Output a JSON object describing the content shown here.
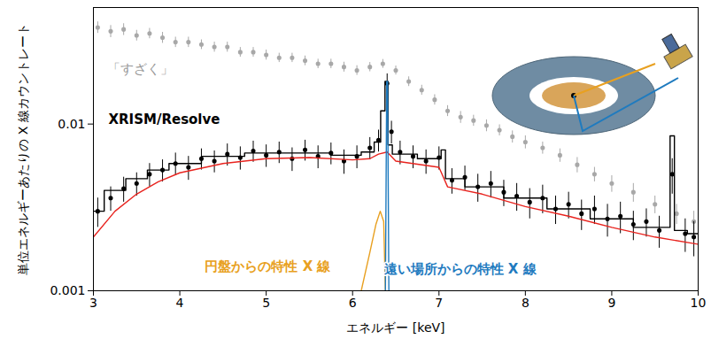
{
  "chart_data": {
    "type": "line",
    "x_label": "エネルギー [keV]",
    "y_label": "単位エネルギーあたりの X 線カウントレート",
    "xlim": [
      3,
      10
    ],
    "xticks": [
      3,
      4,
      5,
      6,
      7,
      8,
      9,
      10
    ],
    "ylim": [
      0.001,
      0.05
    ],
    "yticks": [
      0.001,
      0.01
    ],
    "log": "y",
    "grid": false,
    "series": [
      {
        "name": "「すざく」",
        "type": "scatter",
        "marker": "circle",
        "color": "#a8a8a8",
        "x": [
          3.05,
          3.2,
          3.35,
          3.5,
          3.65,
          3.8,
          3.95,
          4.1,
          4.25,
          4.4,
          4.55,
          4.7,
          4.85,
          5.0,
          5.15,
          5.3,
          5.45,
          5.6,
          5.75,
          5.9,
          6.05,
          6.2,
          6.35,
          6.5,
          6.65,
          6.8,
          6.95,
          7.1,
          7.25,
          7.4,
          7.55,
          7.7,
          7.85,
          8.0,
          8.2,
          8.4,
          8.6,
          8.8,
          9.0,
          9.25,
          9.5,
          9.75,
          9.95
        ],
        "values": [
          0.038,
          0.036,
          0.037,
          0.034,
          0.035,
          0.033,
          0.031,
          0.031,
          0.03,
          0.029,
          0.029,
          0.027,
          0.027,
          0.026,
          0.025,
          0.025,
          0.024,
          0.023,
          0.023,
          0.022,
          0.021,
          0.022,
          0.023,
          0.021,
          0.018,
          0.016,
          0.014,
          0.012,
          0.011,
          0.0105,
          0.0098,
          0.0092,
          0.0084,
          0.0078,
          0.0072,
          0.0065,
          0.0057,
          0.005,
          0.0044,
          0.0039,
          0.0033,
          0.0029,
          0.0026
        ],
        "errors": [
          0.003,
          0.003,
          0.003,
          0.0025,
          0.0025,
          0.0025,
          0.0022,
          0.0022,
          0.002,
          0.002,
          0.002,
          0.0018,
          0.0018,
          0.0018,
          0.0016,
          0.0016,
          0.0016,
          0.0015,
          0.0015,
          0.0015,
          0.0014,
          0.0014,
          0.0014,
          0.0013,
          0.0012,
          0.0011,
          0.001,
          0.0009,
          0.0009,
          0.0008,
          0.0008,
          0.0007,
          0.0007,
          0.0007,
          0.0006,
          0.0006,
          0.0006,
          0.0005,
          0.0005,
          0.0005,
          0.0004,
          0.0004,
          0.0004
        ]
      },
      {
        "name": "XRISM/Resolve",
        "type": "scatter",
        "marker": "circle",
        "color": "#000000",
        "x": [
          3.05,
          3.2,
          3.35,
          3.5,
          3.65,
          3.8,
          3.95,
          4.1,
          4.25,
          4.4,
          4.55,
          4.7,
          4.85,
          5.0,
          5.15,
          5.3,
          5.45,
          5.6,
          5.75,
          5.9,
          6.05,
          6.2,
          6.3,
          6.4,
          6.45,
          6.55,
          6.7,
          6.85,
          7.0,
          7.15,
          7.3,
          7.45,
          7.6,
          7.75,
          7.9,
          8.05,
          8.2,
          8.35,
          8.5,
          8.65,
          8.8,
          8.95,
          9.1,
          9.25,
          9.4,
          9.55,
          9.7,
          9.85,
          9.95
        ],
        "values": [
          0.003,
          0.0036,
          0.0041,
          0.0044,
          0.005,
          0.0053,
          0.0058,
          0.0055,
          0.0062,
          0.006,
          0.0066,
          0.0063,
          0.0069,
          0.0065,
          0.0068,
          0.0062,
          0.007,
          0.0064,
          0.0067,
          0.006,
          0.0064,
          0.0072,
          0.008,
          0.0175,
          0.009,
          0.0068,
          0.0064,
          0.006,
          0.0063,
          0.0046,
          0.0048,
          0.0042,
          0.0044,
          0.0039,
          0.0037,
          0.0034,
          0.0036,
          0.0031,
          0.0033,
          0.0029,
          0.0031,
          0.0027,
          0.0028,
          0.0025,
          0.0026,
          0.0023,
          0.005,
          0.0022,
          0.0021
        ],
        "errors": [
          0.0006,
          0.0006,
          0.0007,
          0.0007,
          0.0008,
          0.0008,
          0.0009,
          0.0009,
          0.0009,
          0.0009,
          0.001,
          0.001,
          0.001,
          0.001,
          0.001,
          0.001,
          0.001,
          0.001,
          0.001,
          0.001,
          0.001,
          0.0011,
          0.0012,
          0.0025,
          0.0014,
          0.0011,
          0.001,
          0.001,
          0.001,
          0.0008,
          0.0008,
          0.0008,
          0.0008,
          0.0007,
          0.0007,
          0.0007,
          0.0007,
          0.0006,
          0.0006,
          0.0006,
          0.0006,
          0.0006,
          0.0006,
          0.0005,
          0.0005,
          0.0005,
          0.0012,
          0.0005,
          0.0005
        ]
      },
      {
        "type": "line",
        "line_style": "step",
        "color": "#000000",
        "x": [
          3.0,
          3.25,
          3.5,
          3.75,
          4.0,
          4.5,
          5.0,
          5.5,
          6.0,
          6.2,
          6.3,
          6.35,
          6.4,
          6.42,
          6.5,
          7.0,
          7.05,
          7.1,
          7.5,
          8.0,
          8.5,
          9.0,
          9.5,
          9.65,
          9.7,
          9.75,
          10.0
        ],
        "values": [
          0.003,
          0.004,
          0.0047,
          0.0053,
          0.0058,
          0.0064,
          0.0067,
          0.0067,
          0.0065,
          0.0068,
          0.0078,
          0.012,
          0.018,
          0.0075,
          0.0066,
          0.0062,
          0.007,
          0.0047,
          0.0042,
          0.0036,
          0.0031,
          0.0027,
          0.0024,
          0.0024,
          0.0085,
          0.0023,
          0.0022
        ]
      },
      {
        "type": "line",
        "line_style": "solid",
        "color": "#e8231e",
        "x": [
          3.0,
          3.25,
          3.5,
          3.75,
          4.0,
          4.5,
          5.0,
          5.5,
          6.0,
          6.2,
          6.3,
          6.4,
          6.5,
          7.0,
          7.1,
          7.5,
          8.0,
          8.5,
          9.0,
          9.5,
          10.0
        ],
        "values": [
          0.0021,
          0.003,
          0.0038,
          0.0045,
          0.0051,
          0.0058,
          0.0062,
          0.0063,
          0.0061,
          0.0062,
          0.0066,
          0.0068,
          0.006,
          0.0055,
          0.0042,
          0.0038,
          0.0032,
          0.0028,
          0.0024,
          0.0021,
          0.0019
        ]
      },
      {
        "name": "円盤からの特性 X 線",
        "type": "line",
        "line_style": "solid",
        "color": "#e8a020",
        "x": [
          6.1,
          6.2,
          6.27,
          6.32,
          6.36,
          6.38
        ],
        "values": [
          0.001,
          0.0017,
          0.0025,
          0.003,
          0.0026,
          0.001
        ]
      },
      {
        "name": "遠い場所からの特性 X 線",
        "type": "line",
        "line_style": "solid",
        "color": "#1f7bbf",
        "x": [
          6.38,
          6.395,
          6.405,
          6.42
        ],
        "values": [
          0.001,
          0.018,
          0.018,
          0.001
        ]
      }
    ]
  }
}
